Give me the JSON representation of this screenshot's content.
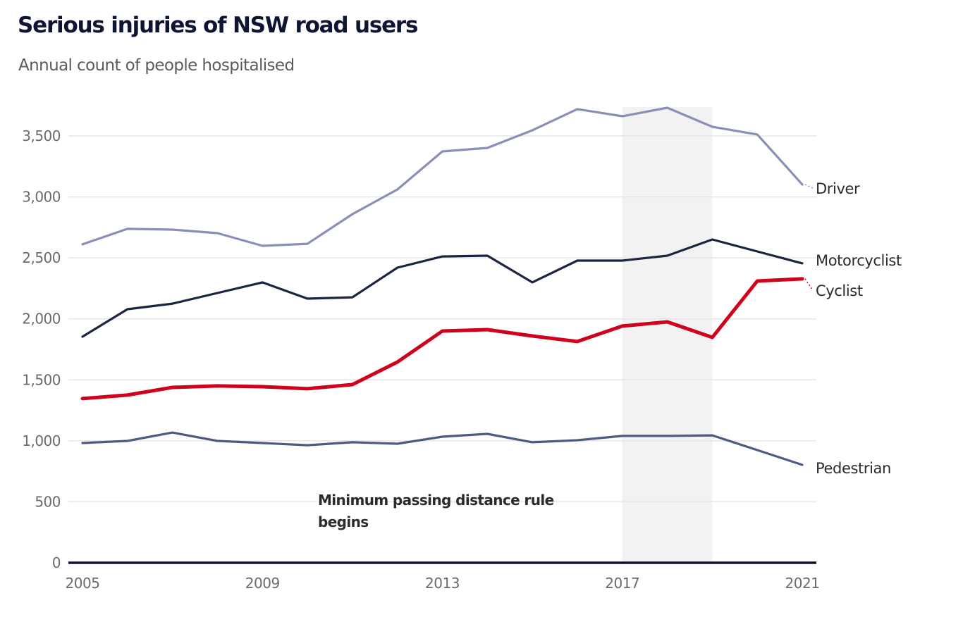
{
  "chart_data": {
    "type": "line",
    "title": "Serious injuries of NSW road users",
    "subtitle": "Annual count of people hospitalised",
    "xlabel": "",
    "ylabel": "",
    "x": [
      2005,
      2006,
      2007,
      2008,
      2009,
      2010,
      2011,
      2012,
      2013,
      2014,
      2015,
      2016,
      2017,
      2018,
      2019,
      2020,
      2021
    ],
    "xlim": [
      2005,
      2021
    ],
    "ylim": [
      0,
      3500
    ],
    "x_ticks": [
      2005,
      2009,
      2013,
      2017,
      2021
    ],
    "x_tick_labels": [
      "2005",
      "2009",
      "2013",
      "2017",
      "2021"
    ],
    "y_ticks": [
      0,
      500,
      1000,
      1500,
      2000,
      2500,
      3000,
      3500
    ],
    "y_tick_labels": [
      "0",
      "500",
      "1,000",
      "1,500",
      "2,000",
      "2,500",
      "3,000",
      "3,500"
    ],
    "grid": true,
    "legend": "direct labels at line ends (right)",
    "series": [
      {
        "name": "Driver",
        "color": "#8a8fb8",
        "emphasis": false,
        "values": [
          2611,
          2738,
          2732,
          2703,
          2599,
          2616,
          2859,
          3061,
          3373,
          3402,
          3546,
          3720,
          3662,
          3731,
          3575,
          3512,
          3102
        ]
      },
      {
        "name": "Motorcyclist",
        "color": "#1b2440",
        "emphasis": false,
        "values": [
          1854,
          2079,
          2125,
          2212,
          2299,
          2166,
          2177,
          2420,
          2512,
          2518,
          2299,
          2478,
          2478,
          2518,
          2651,
          2553,
          2455
        ]
      },
      {
        "name": "Cyclist",
        "color": "#d0021b",
        "emphasis": true,
        "values": [
          1346,
          1375,
          1438,
          1450,
          1444,
          1427,
          1461,
          1646,
          1900,
          1912,
          1860,
          1814,
          1941,
          1975,
          1848,
          2310,
          2328
        ]
      },
      {
        "name": "Pedestrian",
        "color": "#4e5a82",
        "emphasis": false,
        "values": [
          982,
          999,
          1068,
          999,
          982,
          964,
          988,
          976,
          1034,
          1057,
          988,
          1005,
          1040,
          1040,
          1045,
          924,
          803
        ]
      }
    ],
    "highlight_band": {
      "x_start": 2017,
      "x_end": 2019,
      "color": "#f2f2f3"
    },
    "annotations": [
      {
        "lines": [
          "Minimum passing distance rule",
          "begins"
        ]
      }
    ]
  },
  "colors": {
    "title": "#0d1533",
    "subtitle": "#5b5b5b",
    "gridline": "#e6e6e6",
    "baseline": "#0d1530",
    "tick_label": "#6b6b6b"
  }
}
